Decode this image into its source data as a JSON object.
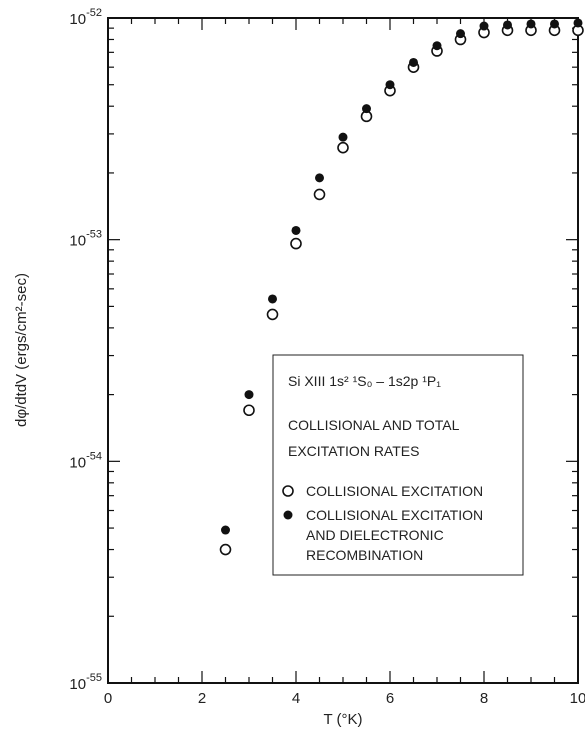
{
  "chart_data": {
    "type": "scatter",
    "xlabel": "T (°K)",
    "ylabel": "dφ/dtdV (ergs/cm²-sec)",
    "xlim": [
      0,
      10
    ],
    "ylim": [
      1e-55,
      1e-52
    ],
    "yscale": "log",
    "x_ticks": [
      "0",
      "2",
      "4",
      "6",
      "8",
      "10"
    ],
    "y_tick_labels": [
      {
        "mantissa": "10",
        "exp": "-52",
        "value": 1e-52
      },
      {
        "mantissa": "10",
        "exp": "-53",
        "value": 1e-53
      },
      {
        "mantissa": "10",
        "exp": "-54",
        "value": 1e-54
      },
      {
        "mantissa": "10",
        "exp": "-55",
        "value": 1e-55
      }
    ],
    "legend": {
      "position": "center-right",
      "title_line1": "Si XIII 1s² ¹S₀ – 1s2p ¹P₁",
      "title_line2": "COLLISIONAL AND TOTAL",
      "title_line3": "EXCITATION RATES"
    },
    "series": [
      {
        "name": "COLLISIONAL EXCITATION",
        "marker": "open-circle",
        "x": [
          2.5,
          3.0,
          3.5,
          4.0,
          4.5,
          5.0,
          5.5,
          6.0,
          6.5,
          7.0,
          7.5,
          8.0,
          8.5,
          9.0,
          9.5,
          10.0
        ],
        "y": [
          4e-55,
          1.7e-54,
          4.6e-54,
          9.6e-54,
          1.6e-53,
          2.6e-53,
          3.6e-53,
          4.7e-53,
          6e-53,
          7.1e-53,
          8e-53,
          8.6e-53,
          8.8e-53,
          8.8e-53,
          8.8e-53,
          8.8e-53
        ]
      },
      {
        "name": "COLLISIONAL EXCITATION AND DIELECTRONIC RECOMBINATION",
        "marker": "filled-circle",
        "x": [
          2.5,
          3.0,
          3.5,
          4.0,
          4.5,
          5.0,
          5.5,
          6.0,
          6.5,
          7.0,
          7.5,
          8.0,
          8.5,
          9.0,
          9.5,
          10.0
        ],
        "y": [
          4.9e-55,
          2e-54,
          5.4e-54,
          1.1e-53,
          1.9e-53,
          2.9e-53,
          3.9e-53,
          5e-53,
          6.3e-53,
          7.5e-53,
          8.5e-53,
          9.2e-53,
          9.3e-53,
          9.4e-53,
          9.4e-53,
          9.5e-53
        ]
      }
    ]
  }
}
